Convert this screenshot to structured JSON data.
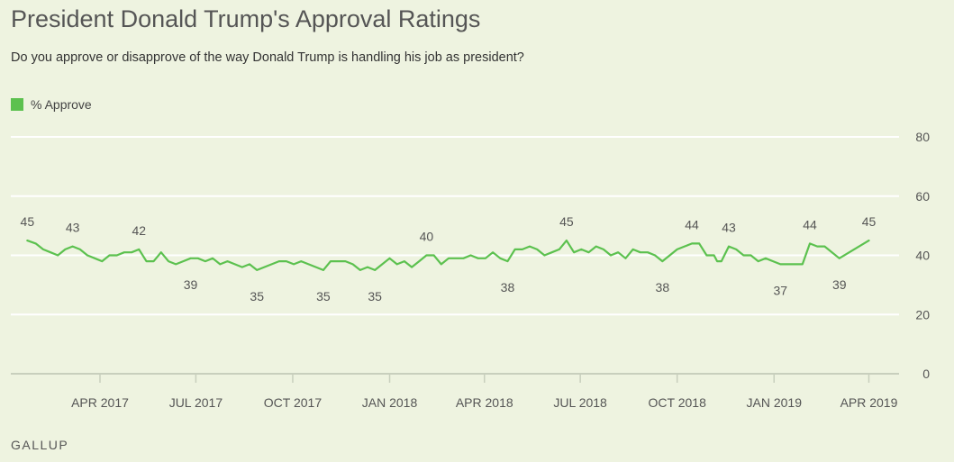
{
  "title": "President Donald Trump's Approval Ratings",
  "subtitle": "Do you approve or disapprove of the way Donald Trump is handling his job as president?",
  "source": "GALLUP",
  "colors": {
    "series": "#5cc14f",
    "background": "#eef3e0",
    "grid": "#ffffff",
    "axis": "#c8cfbd"
  },
  "chart_data": {
    "type": "line",
    "ylim": [
      0,
      80
    ],
    "yticks": [
      0,
      20,
      40,
      60,
      80
    ],
    "xlim": [
      "2017-01-20",
      "2019-04-10"
    ],
    "xticks": [
      {
        "date": "2017-04-01",
        "label": "APR 2017"
      },
      {
        "date": "2017-07-01",
        "label": "JUL 2017"
      },
      {
        "date": "2017-10-01",
        "label": "OCT 2017"
      },
      {
        "date": "2018-01-01",
        "label": "JAN 2018"
      },
      {
        "date": "2018-04-01",
        "label": "APR 2018"
      },
      {
        "date": "2018-07-01",
        "label": "JUL 2018"
      },
      {
        "date": "2018-10-01",
        "label": "OCT 2018"
      },
      {
        "date": "2019-01-01",
        "label": "JAN 2019"
      },
      {
        "date": "2019-04-01",
        "label": "APR 2019"
      }
    ],
    "legend_position": "top-left",
    "grid": true,
    "series": [
      {
        "name": "% Approve",
        "points": [
          {
            "x": "2017-01-22",
            "y": 45,
            "label": "45",
            "label_pos": "above"
          },
          {
            "x": "2017-01-30",
            "y": 44
          },
          {
            "x": "2017-02-06",
            "y": 42
          },
          {
            "x": "2017-02-13",
            "y": 41
          },
          {
            "x": "2017-02-20",
            "y": 40
          },
          {
            "x": "2017-02-27",
            "y": 42
          },
          {
            "x": "2017-03-06",
            "y": 43,
            "label": "43",
            "label_pos": "above"
          },
          {
            "x": "2017-03-13",
            "y": 42
          },
          {
            "x": "2017-03-20",
            "y": 40
          },
          {
            "x": "2017-03-27",
            "y": 39
          },
          {
            "x": "2017-04-03",
            "y": 38
          },
          {
            "x": "2017-04-10",
            "y": 40
          },
          {
            "x": "2017-04-17",
            "y": 40
          },
          {
            "x": "2017-04-24",
            "y": 41
          },
          {
            "x": "2017-05-01",
            "y": 41
          },
          {
            "x": "2017-05-08",
            "y": 42,
            "label": "42",
            "label_pos": "above"
          },
          {
            "x": "2017-05-15",
            "y": 38
          },
          {
            "x": "2017-05-22",
            "y": 38
          },
          {
            "x": "2017-05-29",
            "y": 41
          },
          {
            "x": "2017-06-05",
            "y": 38
          },
          {
            "x": "2017-06-12",
            "y": 37
          },
          {
            "x": "2017-06-19",
            "y": 38
          },
          {
            "x": "2017-06-26",
            "y": 39,
            "label": "39",
            "label_pos": "below"
          },
          {
            "x": "2017-07-03",
            "y": 39
          },
          {
            "x": "2017-07-10",
            "y": 38
          },
          {
            "x": "2017-07-17",
            "y": 39
          },
          {
            "x": "2017-07-24",
            "y": 37
          },
          {
            "x": "2017-07-31",
            "y": 38
          },
          {
            "x": "2017-08-07",
            "y": 37
          },
          {
            "x": "2017-08-14",
            "y": 36
          },
          {
            "x": "2017-08-21",
            "y": 37
          },
          {
            "x": "2017-08-28",
            "y": 35,
            "label": "35",
            "label_pos": "below"
          },
          {
            "x": "2017-09-04",
            "y": 36
          },
          {
            "x": "2017-09-11",
            "y": 37
          },
          {
            "x": "2017-09-18",
            "y": 38
          },
          {
            "x": "2017-09-25",
            "y": 38
          },
          {
            "x": "2017-10-02",
            "y": 37
          },
          {
            "x": "2017-10-09",
            "y": 38
          },
          {
            "x": "2017-10-16",
            "y": 37
          },
          {
            "x": "2017-10-23",
            "y": 36
          },
          {
            "x": "2017-10-30",
            "y": 35,
            "label": "35",
            "label_pos": "below"
          },
          {
            "x": "2017-11-06",
            "y": 38
          },
          {
            "x": "2017-11-13",
            "y": 38
          },
          {
            "x": "2017-11-20",
            "y": 38
          },
          {
            "x": "2017-11-27",
            "y": 37
          },
          {
            "x": "2017-12-04",
            "y": 35
          },
          {
            "x": "2017-12-11",
            "y": 36
          },
          {
            "x": "2017-12-18",
            "y": 35,
            "label": "35",
            "label_pos": "below"
          },
          {
            "x": "2017-12-25",
            "y": 37
          },
          {
            "x": "2018-01-01",
            "y": 39
          },
          {
            "x": "2018-01-08",
            "y": 37
          },
          {
            "x": "2018-01-15",
            "y": 38
          },
          {
            "x": "2018-01-22",
            "y": 36
          },
          {
            "x": "2018-01-29",
            "y": 38
          },
          {
            "x": "2018-02-05",
            "y": 40,
            "label": "40",
            "label_pos": "above"
          },
          {
            "x": "2018-02-12",
            "y": 40
          },
          {
            "x": "2018-02-19",
            "y": 37
          },
          {
            "x": "2018-02-26",
            "y": 39
          },
          {
            "x": "2018-03-05",
            "y": 39
          },
          {
            "x": "2018-03-12",
            "y": 39
          },
          {
            "x": "2018-03-19",
            "y": 40
          },
          {
            "x": "2018-03-26",
            "y": 39
          },
          {
            "x": "2018-04-02",
            "y": 39
          },
          {
            "x": "2018-04-09",
            "y": 41
          },
          {
            "x": "2018-04-16",
            "y": 39
          },
          {
            "x": "2018-04-23",
            "y": 38,
            "label": "38",
            "label_pos": "below"
          },
          {
            "x": "2018-04-30",
            "y": 42
          },
          {
            "x": "2018-05-07",
            "y": 42
          },
          {
            "x": "2018-05-14",
            "y": 43
          },
          {
            "x": "2018-05-21",
            "y": 42
          },
          {
            "x": "2018-05-28",
            "y": 40
          },
          {
            "x": "2018-06-04",
            "y": 41
          },
          {
            "x": "2018-06-11",
            "y": 42
          },
          {
            "x": "2018-06-18",
            "y": 45,
            "label": "45",
            "label_pos": "above"
          },
          {
            "x": "2018-06-25",
            "y": 41
          },
          {
            "x": "2018-07-02",
            "y": 42
          },
          {
            "x": "2018-07-09",
            "y": 41
          },
          {
            "x": "2018-07-16",
            "y": 43
          },
          {
            "x": "2018-07-23",
            "y": 42
          },
          {
            "x": "2018-07-30",
            "y": 40
          },
          {
            "x": "2018-08-06",
            "y": 41
          },
          {
            "x": "2018-08-13",
            "y": 39
          },
          {
            "x": "2018-08-20",
            "y": 42
          },
          {
            "x": "2018-08-27",
            "y": 41
          },
          {
            "x": "2018-09-03",
            "y": 41
          },
          {
            "x": "2018-09-10",
            "y": 40
          },
          {
            "x": "2018-09-17",
            "y": 38,
            "label": "38",
            "label_pos": "below"
          },
          {
            "x": "2018-09-24",
            "y": 40
          },
          {
            "x": "2018-10-01",
            "y": 42
          },
          {
            "x": "2018-10-08",
            "y": 43
          },
          {
            "x": "2018-10-15",
            "y": 44,
            "label": "44",
            "label_pos": "above"
          },
          {
            "x": "2018-10-22",
            "y": 44
          },
          {
            "x": "2018-10-29",
            "y": 40
          },
          {
            "x": "2018-11-05",
            "y": 40
          },
          {
            "x": "2018-11-08",
            "y": 38
          },
          {
            "x": "2018-11-12",
            "y": 38
          },
          {
            "x": "2018-11-19",
            "y": 43,
            "label": "43",
            "label_pos": "above"
          },
          {
            "x": "2018-11-26",
            "y": 42
          },
          {
            "x": "2018-12-03",
            "y": 40
          },
          {
            "x": "2018-12-10",
            "y": 40
          },
          {
            "x": "2018-12-17",
            "y": 38
          },
          {
            "x": "2018-12-24",
            "y": 39
          },
          {
            "x": "2018-12-31",
            "y": 38
          },
          {
            "x": "2019-01-07",
            "y": 37,
            "label": "37",
            "label_pos": "below"
          },
          {
            "x": "2019-01-14",
            "y": 37
          },
          {
            "x": "2019-01-21",
            "y": 37
          },
          {
            "x": "2019-01-28",
            "y": 37
          },
          {
            "x": "2019-02-04",
            "y": 44,
            "label": "44",
            "label_pos": "above"
          },
          {
            "x": "2019-02-11",
            "y": 43
          },
          {
            "x": "2019-02-18",
            "y": 43
          },
          {
            "x": "2019-03-04",
            "y": 39,
            "label": "39",
            "label_pos": "below"
          },
          {
            "x": "2019-04-01",
            "y": 45,
            "label": "45",
            "label_pos": "above"
          }
        ]
      }
    ]
  }
}
